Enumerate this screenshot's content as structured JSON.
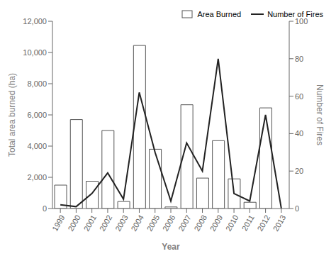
{
  "chart_data": {
    "type": "bar",
    "categories": [
      "1999",
      "2000",
      "2001",
      "2002",
      "2003",
      "2004",
      "2005",
      "2006",
      "2007",
      "2008",
      "2009",
      "2010",
      "2011",
      "2012",
      "2013"
    ],
    "xlabel": "Year",
    "ylabel": "Total area burned (ha)",
    "y2label": "Number of Fires",
    "series": [
      {
        "name": "Area Burned",
        "type": "bar",
        "color": "white",
        "values": [
          1500,
          5700,
          1750,
          5000,
          450,
          10450,
          3800,
          100,
          6650,
          1950,
          4350,
          1900,
          400,
          6450,
          0
        ]
      },
      {
        "name": "Number of Fires",
        "type": "line",
        "color": "#222222",
        "axis": "y2",
        "values": [
          2,
          1,
          8,
          19,
          5,
          62,
          30,
          4,
          35,
          20,
          80,
          8,
          4,
          50,
          0
        ]
      }
    ],
    "ylim": [
      0,
      12000
    ],
    "yticks": [
      0,
      {
        "value": 2000,
        "label": "2,000"
      },
      {
        "value": 4000,
        "label": "4,000"
      },
      {
        "value": 6000,
        "label": "6,000"
      },
      {
        "value": 8000,
        "label": "8,000"
      },
      {
        "value": 10000,
        "label": "10,000"
      },
      {
        "value": 12000,
        "label": "12,000"
      }
    ],
    "y2lim": [
      0,
      100
    ],
    "y2ticks": [
      0,
      20,
      40,
      60,
      80,
      100
    ],
    "grid": false,
    "legend": "upper right"
  }
}
